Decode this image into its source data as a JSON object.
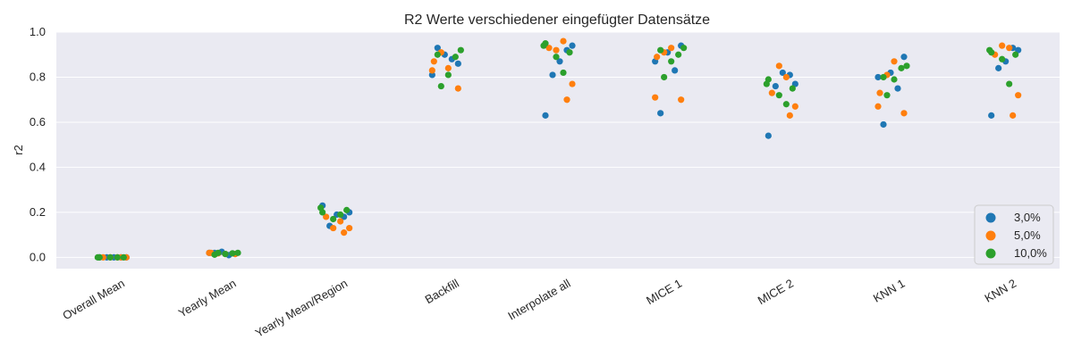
{
  "chart_data": {
    "type": "scatter",
    "title": "R2 Werte verschiedener eingefügter Datensätze",
    "xlabel": "",
    "ylabel": "r2",
    "ylim": [
      -0.05,
      1.0
    ],
    "yticks": [
      "0.0",
      "0.2",
      "0.4",
      "0.6",
      "0.8",
      "1.0"
    ],
    "categories": [
      "Overall Mean",
      "Yearly Mean",
      "Yearly Mean/Region",
      "Backfill",
      "Interpolate all",
      "MICE 1",
      "MICE 2",
      "KNN 1",
      "KNN 2"
    ],
    "grid": true,
    "legend_position": "lower right",
    "series": [
      {
        "name": "3,0%",
        "color": "#1f77b4",
        "points": [
          [
            "Overall Mean",
            0.0
          ],
          [
            "Overall Mean",
            0.0
          ],
          [
            "Overall Mean",
            0.0
          ],
          [
            "Overall Mean",
            0.0
          ],
          [
            "Overall Mean",
            0.0
          ],
          [
            "Yearly Mean",
            0.02
          ],
          [
            "Yearly Mean",
            0.01
          ],
          [
            "Yearly Mean",
            0.025
          ],
          [
            "Yearly Mean",
            0.015
          ],
          [
            "Yearly Mean",
            0.02
          ],
          [
            "Yearly Mean/Region",
            0.23
          ],
          [
            "Yearly Mean/Region",
            0.14
          ],
          [
            "Yearly Mean/Region",
            0.19
          ],
          [
            "Yearly Mean/Region",
            0.18
          ],
          [
            "Yearly Mean/Region",
            0.2
          ],
          [
            "Backfill",
            0.93
          ],
          [
            "Backfill",
            0.88
          ],
          [
            "Backfill",
            0.9
          ],
          [
            "Backfill",
            0.86
          ],
          [
            "Backfill",
            0.81
          ],
          [
            "Interpolate all",
            0.63
          ],
          [
            "Interpolate all",
            0.81
          ],
          [
            "Interpolate all",
            0.87
          ],
          [
            "Interpolate all",
            0.92
          ],
          [
            "Interpolate all",
            0.94
          ],
          [
            "MICE 1",
            0.64
          ],
          [
            "MICE 1",
            0.83
          ],
          [
            "MICE 1",
            0.91
          ],
          [
            "MICE 1",
            0.94
          ],
          [
            "MICE 1",
            0.87
          ],
          [
            "MICE 2",
            0.54
          ],
          [
            "MICE 2",
            0.76
          ],
          [
            "MICE 2",
            0.82
          ],
          [
            "MICE 2",
            0.81
          ],
          [
            "MICE 2",
            0.77
          ],
          [
            "KNN 1",
            0.59
          ],
          [
            "KNN 1",
            0.75
          ],
          [
            "KNN 1",
            0.82
          ],
          [
            "KNN 1",
            0.89
          ],
          [
            "KNN 1",
            0.8
          ],
          [
            "KNN 2",
            0.63
          ],
          [
            "KNN 2",
            0.84
          ],
          [
            "KNN 2",
            0.87
          ],
          [
            "KNN 2",
            0.93
          ],
          [
            "KNN 2",
            0.92
          ]
        ]
      },
      {
        "name": "5,0%",
        "color": "#ff7f0e",
        "points": [
          [
            "Overall Mean",
            0.0
          ],
          [
            "Overall Mean",
            0.0
          ],
          [
            "Overall Mean",
            0.0
          ],
          [
            "Overall Mean",
            0.0
          ],
          [
            "Overall Mean",
            0.0
          ],
          [
            "Yearly Mean",
            0.015
          ],
          [
            "Yearly Mean",
            0.02
          ],
          [
            "Yearly Mean",
            0.02
          ],
          [
            "Yearly Mean",
            0.018
          ],
          [
            "Yearly Mean",
            0.015
          ],
          [
            "Yearly Mean/Region",
            0.11
          ],
          [
            "Yearly Mean/Region",
            0.13
          ],
          [
            "Yearly Mean/Region",
            0.18
          ],
          [
            "Yearly Mean/Region",
            0.16
          ],
          [
            "Yearly Mean/Region",
            0.13
          ],
          [
            "Backfill",
            0.75
          ],
          [
            "Backfill",
            0.83
          ],
          [
            "Backfill",
            0.87
          ],
          [
            "Backfill",
            0.91
          ],
          [
            "Backfill",
            0.84
          ],
          [
            "Interpolate all",
            0.7
          ],
          [
            "Interpolate all",
            0.77
          ],
          [
            "Interpolate all",
            0.93
          ],
          [
            "Interpolate all",
            0.96
          ],
          [
            "Interpolate all",
            0.92
          ],
          [
            "MICE 1",
            0.7
          ],
          [
            "MICE 1",
            0.71
          ],
          [
            "MICE 1",
            0.89
          ],
          [
            "MICE 1",
            0.91
          ],
          [
            "MICE 1",
            0.93
          ],
          [
            "MICE 2",
            0.63
          ],
          [
            "MICE 2",
            0.67
          ],
          [
            "MICE 2",
            0.73
          ],
          [
            "MICE 2",
            0.8
          ],
          [
            "MICE 2",
            0.85
          ],
          [
            "KNN 1",
            0.64
          ],
          [
            "KNN 1",
            0.67
          ],
          [
            "KNN 1",
            0.73
          ],
          [
            "KNN 1",
            0.81
          ],
          [
            "KNN 1",
            0.87
          ],
          [
            "KNN 2",
            0.63
          ],
          [
            "KNN 2",
            0.72
          ],
          [
            "KNN 2",
            0.9
          ],
          [
            "KNN 2",
            0.93
          ],
          [
            "KNN 2",
            0.94
          ]
        ]
      },
      {
        "name": "10,0%",
        "color": "#2ca02c",
        "points": [
          [
            "Overall Mean",
            0.0
          ],
          [
            "Overall Mean",
            0.0
          ],
          [
            "Overall Mean",
            0.0
          ],
          [
            "Overall Mean",
            0.0
          ],
          [
            "Overall Mean",
            0.0
          ],
          [
            "Yearly Mean",
            0.02
          ],
          [
            "Yearly Mean",
            0.015
          ],
          [
            "Yearly Mean",
            0.018
          ],
          [
            "Yearly Mean",
            0.02
          ],
          [
            "Yearly Mean",
            0.012
          ],
          [
            "Yearly Mean/Region",
            0.19
          ],
          [
            "Yearly Mean/Region",
            0.17
          ],
          [
            "Yearly Mean/Region",
            0.21
          ],
          [
            "Yearly Mean/Region",
            0.22
          ],
          [
            "Yearly Mean/Region",
            0.2
          ],
          [
            "Backfill",
            0.76
          ],
          [
            "Backfill",
            0.81
          ],
          [
            "Backfill",
            0.89
          ],
          [
            "Backfill",
            0.92
          ],
          [
            "Backfill",
            0.9
          ],
          [
            "Interpolate all",
            0.82
          ],
          [
            "Interpolate all",
            0.89
          ],
          [
            "Interpolate all",
            0.91
          ],
          [
            "Interpolate all",
            0.94
          ],
          [
            "Interpolate all",
            0.95
          ],
          [
            "MICE 1",
            0.8
          ],
          [
            "MICE 1",
            0.87
          ],
          [
            "MICE 1",
            0.9
          ],
          [
            "MICE 1",
            0.93
          ],
          [
            "MICE 1",
            0.92
          ],
          [
            "MICE 2",
            0.68
          ],
          [
            "MICE 2",
            0.72
          ],
          [
            "MICE 2",
            0.75
          ],
          [
            "MICE 2",
            0.77
          ],
          [
            "MICE 2",
            0.79
          ],
          [
            "KNN 1",
            0.72
          ],
          [
            "KNN 1",
            0.79
          ],
          [
            "KNN 1",
            0.84
          ],
          [
            "KNN 1",
            0.85
          ],
          [
            "KNN 1",
            0.8
          ],
          [
            "KNN 2",
            0.77
          ],
          [
            "KNN 2",
            0.88
          ],
          [
            "KNN 2",
            0.9
          ],
          [
            "KNN 2",
            0.92
          ],
          [
            "KNN 2",
            0.91
          ]
        ]
      }
    ]
  }
}
